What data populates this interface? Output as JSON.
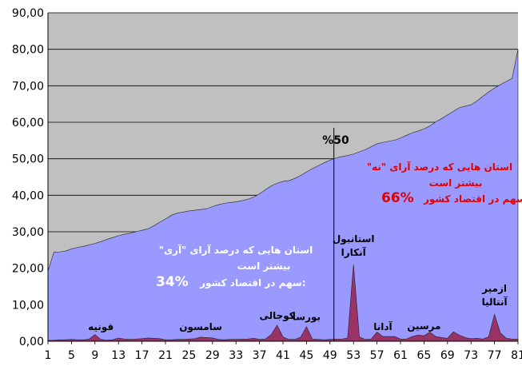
{
  "chart_data": {
    "type": "area",
    "title": "",
    "xlabel": "",
    "ylabel": "",
    "ylim": [
      0,
      90
    ],
    "xlim": [
      1,
      81
    ],
    "grid": true,
    "y_ticks": [
      "0,00",
      "10,00",
      "20,00",
      "30,00",
      "40,00",
      "50,00",
      "60,00",
      "70,00",
      "80,00",
      "90,00"
    ],
    "x_ticks": [
      "1",
      "5",
      "9",
      "13",
      "17",
      "21",
      "25",
      "29",
      "33",
      "37",
      "41",
      "45",
      "49",
      "53",
      "57",
      "61",
      "65",
      "69",
      "73",
      "77",
      "81"
    ],
    "colors": {
      "plot_bg": "#c0c0c0",
      "cumulative_fill": "#9999ff",
      "share_fill": "#993366",
      "red_text": "#e00000"
    },
    "series": [
      {
        "values": [
          19.2,
          24.4,
          24.5,
          24.7,
          25.3,
          25.7,
          26.0,
          26.4,
          26.8,
          27.3,
          27.9,
          28.4,
          28.9,
          29.3,
          29.6,
          30.0,
          30.4,
          30.8,
          31.6,
          32.6,
          33.5,
          34.5,
          35.1,
          35.4,
          35.7,
          35.9,
          36.1,
          36.3,
          36.9,
          37.4,
          37.8,
          38.0,
          38.2,
          38.5,
          38.9,
          39.5,
          40.4,
          41.5,
          42.6,
          43.3,
          43.8,
          44.0,
          44.6,
          45.4,
          46.4,
          47.3,
          48.1,
          48.9,
          49.6,
          50.2,
          50.6,
          50.9,
          51.3,
          51.9,
          52.5,
          53.3,
          54.1,
          54.5,
          54.8,
          55.1,
          55.7,
          56.4,
          57.1,
          57.6,
          58.2,
          59.0,
          60.1,
          61.0,
          62.0,
          63.0,
          64.0,
          64.4,
          64.8,
          65.8,
          67.1,
          68.3,
          69.4,
          70.3,
          71.2,
          72.0,
          80.0
        ]
      },
      {
        "values": [
          0.2,
          0.3,
          0.4,
          0.4,
          0.5,
          0.4,
          0.4,
          0.6,
          1.8,
          0.5,
          0.3,
          0.4,
          0.9,
          0.6,
          0.5,
          0.6,
          0.7,
          0.9,
          0.8,
          0.7,
          0.4,
          0.4,
          0.5,
          0.5,
          0.6,
          0.7,
          1.1,
          1.0,
          0.9,
          0.5,
          0.4,
          0.5,
          0.5,
          0.6,
          0.6,
          0.8,
          0.5,
          0.6,
          1.8,
          4.4,
          1.2,
          0.5,
          0.5,
          1.1,
          4.0,
          0.6,
          0.5,
          0.4,
          0.5,
          0.6,
          0.6,
          0.9,
          21.0,
          1.2,
          0.5,
          0.6,
          2.5,
          1.3,
          1.3,
          1.3,
          0.6,
          0.6,
          1.3,
          1.7,
          1.5,
          2.5,
          1.3,
          1.0,
          0.8,
          2.6,
          1.7,
          1.0,
          0.7,
          0.8,
          0.6,
          1.2,
          7.4,
          2.3,
          0.8,
          0.6,
          0.6
        ]
      }
    ],
    "annotations": {
      "fifty": "%50",
      "yes_line1": "استان هایی که درصد آرای \"آری\"",
      "yes_line2": "بیشتر است",
      "yes_line3": "سهم در اقتصاد کشور:",
      "yes_share": "34%",
      "no_line1": "استان هایی که درصد آرای \"نه\"",
      "no_line2": "بیشتر است",
      "no_line3": "سهم در اقتصاد کشور:",
      "no_share": "66%"
    },
    "province_labels": [
      {
        "name": "قونیه",
        "x": 10
      },
      {
        "name": "سامسون",
        "x": 27
      },
      {
        "name": "کوجالی",
        "x": 40
      },
      {
        "name": "بورسا",
        "x": 45
      },
      {
        "name": "استانبول",
        "x": 53,
        "line2": "آنکارا"
      },
      {
        "name": "آدانا",
        "x": 58
      },
      {
        "name": "مرسین",
        "x": 65
      },
      {
        "name": "ازمیر",
        "x": 77,
        "line2": "آنتالیا"
      }
    ]
  }
}
